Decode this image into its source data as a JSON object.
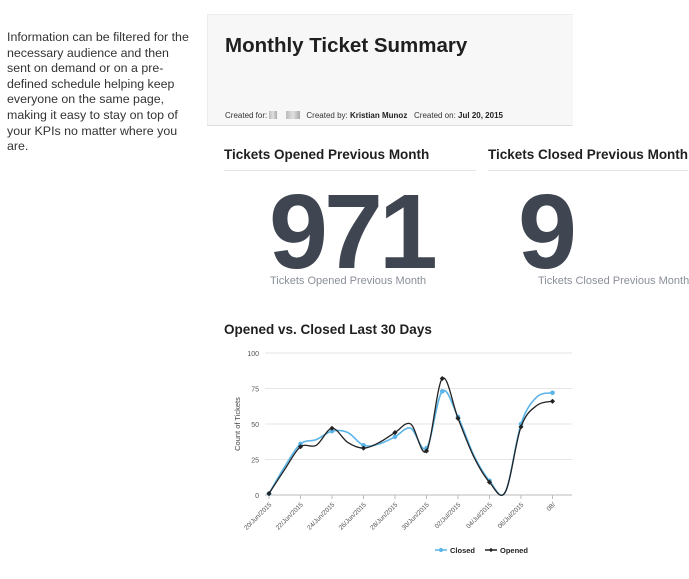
{
  "side_text": "Information can be filtered for the necessary audience and then sent on demand or on a pre-defined schedule helping keep everyone on the same page, making it easy to stay on top of your KPIs no matter where you are.",
  "report": {
    "title": "Monthly Ticket Summary",
    "meta": {
      "created_for_label": "Created for:",
      "created_by_label": "Created by:",
      "created_by": "Kristian Munoz",
      "created_on_label": "Created on:",
      "created_on": "Jul 20, 2015"
    },
    "kpis": [
      {
        "title": "Tickets Opened Previous Month",
        "value": "971",
        "subtitle": "Tickets Opened Previous Month"
      },
      {
        "title": "Tickets Closed Previous Month",
        "value": "9",
        "subtitle": "Tickets Closed Previous Month"
      }
    ],
    "chart_title": "Opened vs. Closed Last 30 Days"
  },
  "chart_data": {
    "type": "line",
    "title": "Opened vs. Closed Last 30 Days",
    "ylabel": "Count of Tickets",
    "ylim": [
      0,
      100
    ],
    "yticks": [
      0,
      25,
      50,
      75,
      100
    ],
    "x_tick_labels": [
      "20/Jun/2015",
      "22/Jun/2015",
      "24/Jun/2015",
      "26/Jun/2015",
      "28/Jun/2015",
      "30/Jun/2015",
      "02/Jul/2015",
      "04/Jul/2015",
      "06/Jul/2015",
      "08/"
    ],
    "x": [
      "20/Jun/2015",
      "21/Jun/2015",
      "22/Jun/2015",
      "23/Jun/2015",
      "24/Jun/2015",
      "25/Jun/2015",
      "26/Jun/2015",
      "27/Jun/2015",
      "28/Jun/2015",
      "29/Jun/2015",
      "30/Jun/2015",
      "01/Jul/2015",
      "02/Jul/2015",
      "03/Jul/2015",
      "04/Jul/2015",
      "05/Jul/2015",
      "06/Jul/2015",
      "07/Jul/2015",
      "08/Jul/2015"
    ],
    "series": [
      {
        "name": "Closed",
        "color": "#5ab4e8",
        "values": [
          1,
          20,
          36,
          39,
          45,
          44,
          35,
          36,
          41,
          47,
          33,
          73,
          55,
          28,
          10,
          2,
          50,
          69,
          72
        ]
      },
      {
        "name": "Opened",
        "color": "#222222",
        "values": [
          1,
          18,
          34,
          35,
          47,
          37,
          33,
          37,
          44,
          50,
          31,
          82,
          54,
          27,
          9,
          2,
          48,
          63,
          66
        ]
      }
    ],
    "legend": "bottom-right",
    "grid": true
  }
}
